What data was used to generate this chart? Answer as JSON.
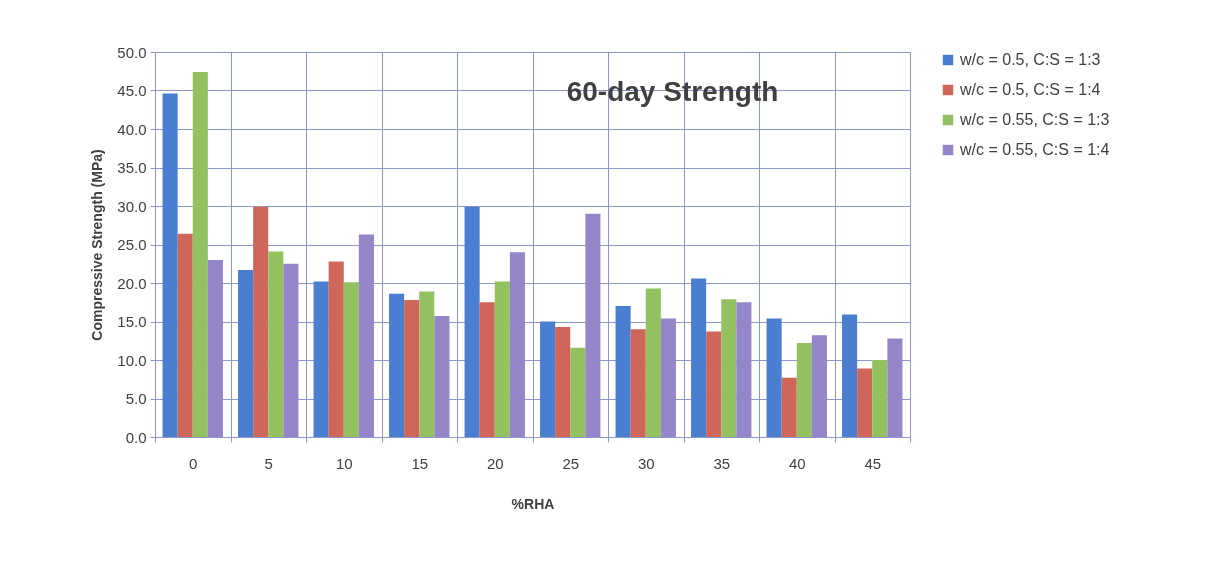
{
  "chart_data": {
    "type": "bar",
    "title": "60-day Strength",
    "xlabel": "%RHA",
    "ylabel": "Compressive Strength (MPa)",
    "categories": [
      "0",
      "5",
      "10",
      "15",
      "20",
      "25",
      "30",
      "35",
      "40",
      "45"
    ],
    "series": [
      {
        "name": "w/c = 0.5, C:S = 1:3",
        "color": "#4a7ed0",
        "values": [
          44.6,
          21.7,
          20.2,
          18.6,
          29.9,
          15.0,
          17.0,
          20.6,
          15.4,
          15.9
        ]
      },
      {
        "name": "w/c = 0.5, C:S = 1:4",
        "color": "#d0655a",
        "values": [
          26.4,
          29.9,
          22.8,
          17.8,
          17.5,
          14.3,
          14.0,
          13.7,
          7.7,
          8.9
        ]
      },
      {
        "name": "w/c = 0.55, C:S = 1:3",
        "color": "#93c160",
        "values": [
          47.4,
          24.1,
          20.1,
          18.9,
          20.2,
          11.6,
          19.3,
          17.9,
          12.2,
          10.0
        ]
      },
      {
        "name": "w/c = 0.55, C:S = 1:4",
        "color": "#9486c8",
        "values": [
          23.0,
          22.5,
          26.3,
          15.7,
          24.0,
          29.0,
          15.4,
          17.5,
          13.2,
          12.8
        ]
      }
    ],
    "ylim": [
      0,
      50
    ],
    "yticks": [
      {
        "value": 0,
        "label": "0.0"
      },
      {
        "value": 5,
        "label": "5.0"
      },
      {
        "value": 10,
        "label": "10.0"
      },
      {
        "value": 15,
        "label": "15.0"
      },
      {
        "value": 20,
        "label": "20.0"
      },
      {
        "value": 25,
        "label": "25.0"
      },
      {
        "value": 30,
        "label": "30.0"
      },
      {
        "value": 35,
        "label": "35.0"
      },
      {
        "value": 40,
        "label": "40.0"
      },
      {
        "value": 45,
        "label": "45.0"
      },
      {
        "value": 50,
        "label": "50.0"
      }
    ],
    "grid": true,
    "legend": "right"
  }
}
